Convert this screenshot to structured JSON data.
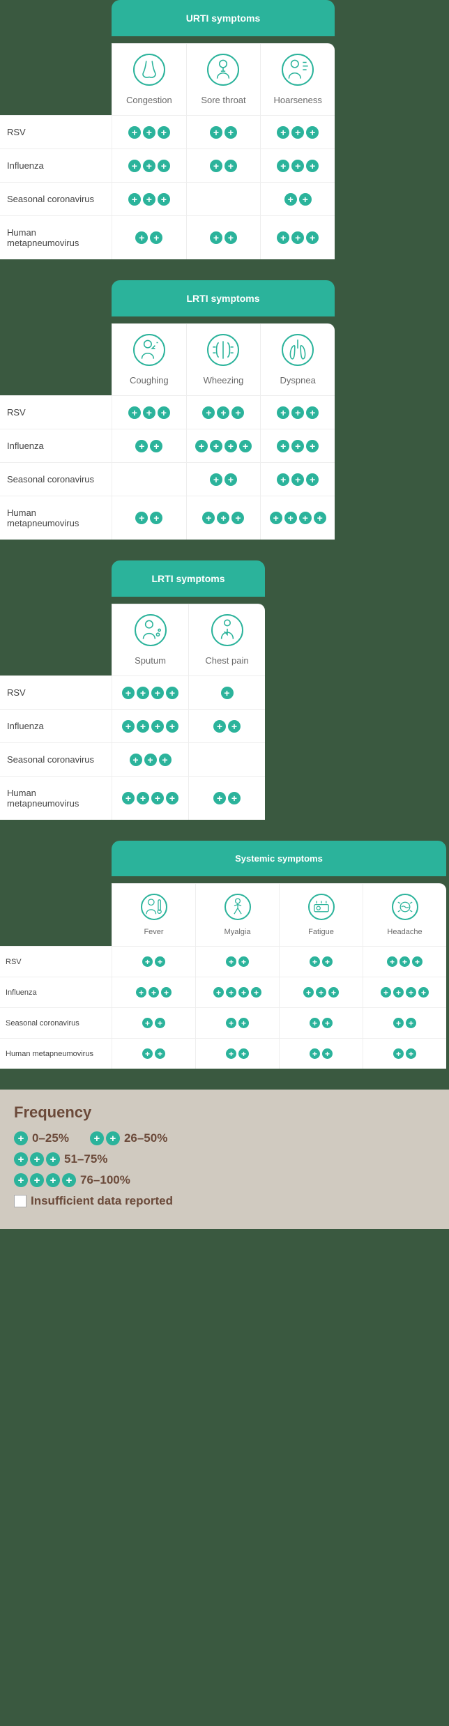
{
  "accent_color": "#2bb39b",
  "background_color": "#3a5940",
  "sections": [
    {
      "title": "URTI symptoms",
      "cols": 3,
      "symptoms": [
        "Congestion",
        "Sore throat",
        "Hoarseness"
      ],
      "icons": [
        "nose",
        "throat",
        "hoarse"
      ],
      "rows": [
        {
          "label": "RSV",
          "vals": [
            3,
            2,
            3
          ]
        },
        {
          "label": "Influenza",
          "vals": [
            3,
            2,
            3
          ]
        },
        {
          "label": "Seasonal coronavirus",
          "vals": [
            3,
            0,
            2
          ]
        },
        {
          "label": "Human metapneumovirus",
          "vals": [
            2,
            2,
            3
          ]
        }
      ]
    },
    {
      "title": "LRTI symptoms",
      "cols": 3,
      "symptoms": [
        "Coughing",
        "Wheezing",
        "Dyspnea"
      ],
      "icons": [
        "cough",
        "wheeze",
        "lungs"
      ],
      "rows": [
        {
          "label": "RSV",
          "vals": [
            3,
            3,
            3
          ]
        },
        {
          "label": "Influenza",
          "vals": [
            2,
            4,
            3
          ]
        },
        {
          "label": "Seasonal coronavirus",
          "vals": [
            0,
            2,
            3
          ]
        },
        {
          "label": "Human metapneumovirus",
          "vals": [
            2,
            3,
            4
          ]
        }
      ]
    },
    {
      "title": "LRTI symptoms",
      "cols": 2,
      "symptoms": [
        "Sputum",
        "Chest pain"
      ],
      "icons": [
        "sputum",
        "chest"
      ],
      "rows": [
        {
          "label": "RSV",
          "vals": [
            4,
            1
          ]
        },
        {
          "label": "Influenza",
          "vals": [
            4,
            2
          ]
        },
        {
          "label": "Seasonal coronavirus",
          "vals": [
            3,
            0
          ]
        },
        {
          "label": "Human metapneumovirus",
          "vals": [
            4,
            2
          ]
        }
      ]
    },
    {
      "title": "Systemic symptoms",
      "cols": 4,
      "symptoms": [
        "Fever",
        "Myalgia",
        "Fatigue",
        "Headache"
      ],
      "icons": [
        "fever",
        "myalgia",
        "fatigue",
        "headache"
      ],
      "rows": [
        {
          "label": "RSV",
          "vals": [
            2,
            2,
            2,
            3
          ]
        },
        {
          "label": "Influenza",
          "vals": [
            3,
            4,
            3,
            4
          ]
        },
        {
          "label": "Seasonal coronavirus",
          "vals": [
            2,
            2,
            2,
            2
          ]
        },
        {
          "label": "Human metapneumovirus",
          "vals": [
            2,
            2,
            2,
            2
          ]
        }
      ]
    }
  ],
  "legend": {
    "title": "Frequency",
    "items": [
      {
        "count": 1,
        "label": "0–25%"
      },
      {
        "count": 2,
        "label": "26–50%"
      },
      {
        "count": 3,
        "label": "51–75%"
      },
      {
        "count": 4,
        "label": "76–100%"
      }
    ],
    "empty_label": "Insufficient data reported"
  }
}
